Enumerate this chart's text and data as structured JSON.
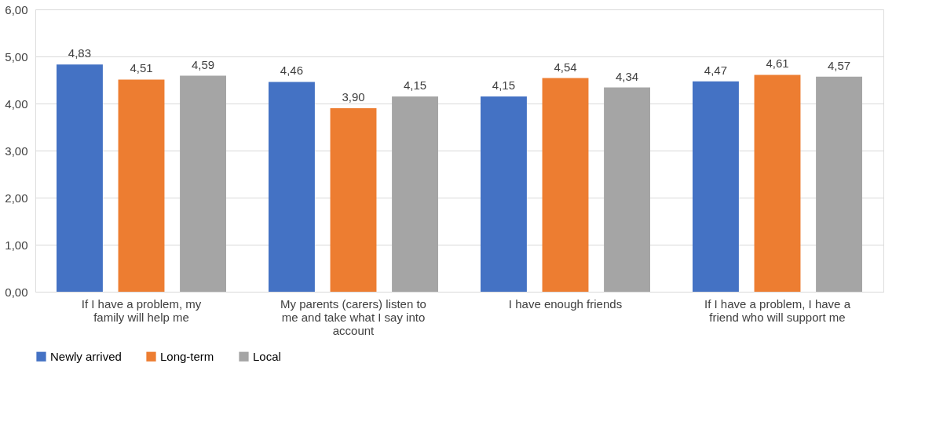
{
  "chart_data": {
    "type": "bar",
    "categories": [
      "If I have a problem, my family will help me",
      "My parents (carers) listen to me and take what I say into account",
      "I have enough friends",
      "If I have a problem, I have a friend who will support me"
    ],
    "series": [
      {
        "name": "Newly arrived",
        "color": "#4472c4",
        "values": [
          4.83,
          4.46,
          4.15,
          4.47
        ],
        "value_labels": [
          "4,83",
          "4,46",
          "4,15",
          "4,47"
        ]
      },
      {
        "name": "Long-term",
        "color": "#ed7d31",
        "values": [
          4.51,
          3.9,
          4.54,
          4.61
        ],
        "value_labels": [
          "4,51",
          "3,90",
          "4,54",
          "4,61"
        ]
      },
      {
        "name": "Local",
        "color": "#a5a5a5",
        "values": [
          4.59,
          4.15,
          4.34,
          4.57
        ],
        "value_labels": [
          "4,59",
          "4,15",
          "4,34",
          "4,57"
        ]
      }
    ],
    "ylim": [
      0,
      6
    ],
    "yticks": [
      {
        "value": 0,
        "label": "0,00"
      },
      {
        "value": 1,
        "label": "1,00"
      },
      {
        "value": 2,
        "label": "2,00"
      },
      {
        "value": 3,
        "label": "3,00"
      },
      {
        "value": 4,
        "label": "4,00"
      },
      {
        "value": 5,
        "label": "5,00"
      },
      {
        "value": 6,
        "label": "6,00"
      }
    ],
    "grid": "y",
    "legend": "bottom"
  }
}
